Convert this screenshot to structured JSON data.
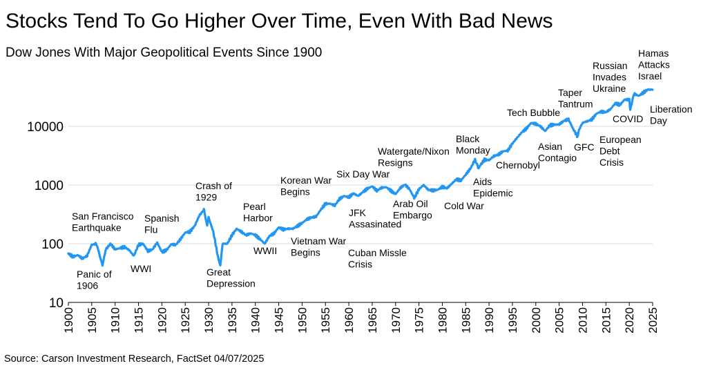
{
  "title": "Stocks Tend To Go Higher Over Time, Even With Bad News",
  "subtitle": "Dow Jones With Major Geopolitical Events Since 1900",
  "source": "Source: Carson Investment Research, FactSet 04/07/2025",
  "chart_data": {
    "type": "line",
    "title": "Stocks Tend To Go Higher Over Time, Even With Bad News",
    "subtitle": "Dow Jones With Major Geopolitical Events Since 1900",
    "xlabel": "",
    "ylabel": "",
    "yscale": "log",
    "ylim": [
      10,
      50000
    ],
    "xlim": [
      1900,
      2025
    ],
    "yticks": [
      "10",
      "100",
      "1000",
      "10000"
    ],
    "yticks_values": [
      10,
      100,
      1000,
      10000
    ],
    "xticks": [
      "1900",
      "1905",
      "1910",
      "1915",
      "1920",
      "1925",
      "1930",
      "1935",
      "1940",
      "1945",
      "1950",
      "1955",
      "1960",
      "1965",
      "1970",
      "1975",
      "1980",
      "1985",
      "1990",
      "1995",
      "2000",
      "2005",
      "2010",
      "2015",
      "2020",
      "2025"
    ],
    "grid": true,
    "line_color": "#2196F3",
    "series": [
      {
        "x": [
          1900,
          1901,
          1902,
          1903,
          1904,
          1905,
          1906,
          1906.9,
          1907.3,
          1908,
          1909,
          1910,
          1911,
          1912,
          1913,
          1914,
          1915,
          1916,
          1917,
          1918,
          1919,
          1920,
          1921,
          1922,
          1923,
          1924,
          1925,
          1926,
          1927,
          1928,
          1929,
          1929.7,
          1930,
          1931,
          1932,
          1932.5,
          1933,
          1934,
          1935,
          1936,
          1937,
          1938,
          1939,
          1940,
          1941,
          1942,
          1943,
          1944,
          1945,
          1946,
          1947,
          1948,
          1949,
          1950,
          1951,
          1952,
          1953,
          1954,
          1955,
          1956,
          1957,
          1958,
          1959,
          1960,
          1961,
          1962,
          1963,
          1964,
          1965,
          1966,
          1967,
          1968,
          1969,
          1970,
          1971,
          1972,
          1973,
          1974,
          1975,
          1976,
          1977,
          1978,
          1979,
          1980,
          1981,
          1982,
          1983,
          1984,
          1985,
          1986,
          1987,
          1987.8,
          1988,
          1989,
          1990,
          1991,
          1992,
          1993,
          1994,
          1995,
          1996,
          1997,
          1998,
          1999,
          2000,
          2001,
          2002,
          2003,
          2004,
          2005,
          2006,
          2007,
          2008,
          2009,
          2009.2,
          2010,
          2011,
          2012,
          2013,
          2014,
          2015,
          2016,
          2017,
          2018,
          2019,
          2020,
          2020.2,
          2021,
          2022,
          2023,
          2024,
          2025
        ],
        "y": [
          68,
          60,
          64,
          56,
          62,
          96,
          100,
          56,
          43,
          80,
          100,
          80,
          84,
          88,
          78,
          62,
          96,
          100,
          75,
          80,
          105,
          72,
          78,
          98,
          96,
          120,
          155,
          160,
          200,
          300,
          380,
          200,
          280,
          160,
          60,
          42,
          100,
          100,
          140,
          180,
          160,
          140,
          150,
          140,
          120,
          100,
          135,
          150,
          190,
          175,
          180,
          180,
          200,
          225,
          260,
          280,
          290,
          380,
          480,
          480,
          450,
          580,
          650,
          620,
          720,
          650,
          760,
          870,
          950,
          800,
          900,
          920,
          800,
          700,
          890,
          1020,
          850,
          600,
          850,
          1000,
          830,
          810,
          830,
          930,
          880,
          1050,
          1250,
          1200,
          1500,
          1900,
          2700,
          1900,
          2100,
          2700,
          2650,
          3100,
          3300,
          3750,
          3850,
          5100,
          6400,
          7900,
          9200,
          11400,
          11000,
          10000,
          8300,
          10400,
          10700,
          10800,
          12400,
          13200,
          9000,
          6550,
          8500,
          11500,
          12200,
          13100,
          16500,
          17800,
          17400,
          19700,
          24700,
          23300,
          28500,
          28500,
          19000,
          36000,
          33000,
          37500,
          42500,
          42000
        ]
      }
    ],
    "annotations": [
      {
        "text": "San Francisco\nEarthquake",
        "x": 1906
      },
      {
        "text": "Panic of\n1906",
        "x": 1906
      },
      {
        "text": "WWI",
        "x": 1914
      },
      {
        "text": "Spanish\nFlu",
        "x": 1918
      },
      {
        "text": "Crash of\n1929",
        "x": 1929
      },
      {
        "text": "Great\nDepression",
        "x": 1932
      },
      {
        "text": "Pearl\nHarbor",
        "x": 1941
      },
      {
        "text": "WWII",
        "x": 1942
      },
      {
        "text": "Korean War\nBegins",
        "x": 1950
      },
      {
        "text": "Vietnam War\nBegins",
        "x": 1955
      },
      {
        "text": "Six Day War",
        "x": 1967
      },
      {
        "text": "JFK\nAssasinated",
        "x": 1963
      },
      {
        "text": "Cuban Missle\nCrisis",
        "x": 1962
      },
      {
        "text": "Watergate/Nixon\nResigns",
        "x": 1974
      },
      {
        "text": "Arab Oil\nEmbargo",
        "x": 1973
      },
      {
        "text": "Cold War",
        "x": 1981
      },
      {
        "text": "Black\nMonday",
        "x": 1987
      },
      {
        "text": "Aids\nEpidemic",
        "x": 1987
      },
      {
        "text": "Chernobyl",
        "x": 1986
      },
      {
        "text": "Tech Bubble",
        "x": 2000
      },
      {
        "text": "Asian\nContagio",
        "x": 1998
      },
      {
        "text": "Taper\nTantrum",
        "x": 2013
      },
      {
        "text": "GFC",
        "x": 2008
      },
      {
        "text": "European\nDebt\nCrisis",
        "x": 2011
      },
      {
        "text": "Russian\nInvades\nUkraine",
        "x": 2022
      },
      {
        "text": "COVID",
        "x": 2020
      },
      {
        "text": "Hamas\nAttacks\nIsrael",
        "x": 2023
      },
      {
        "text": "Liberation\nDay",
        "x": 2025
      }
    ]
  }
}
